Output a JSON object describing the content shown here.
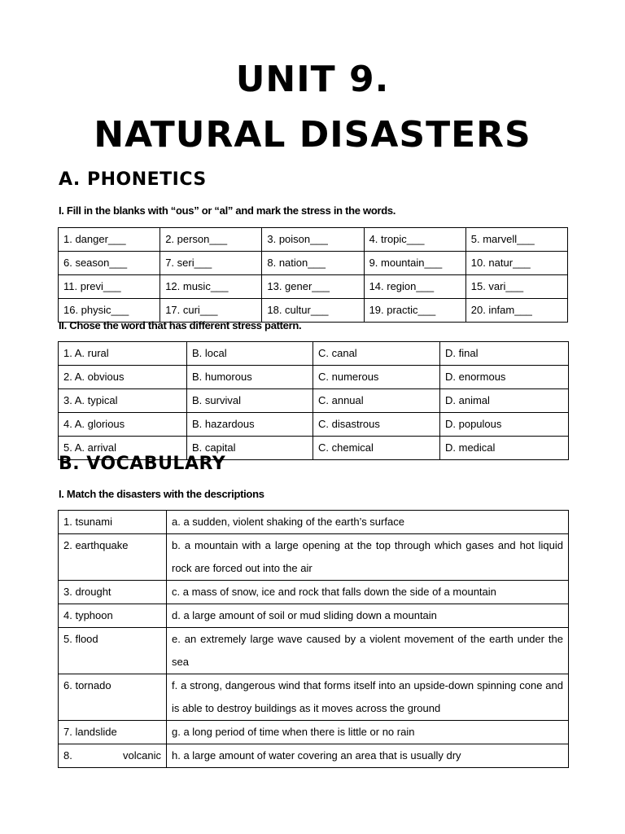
{
  "title_line1": "UNIT 9.",
  "title_line2": "NATURAL DISASTERS",
  "section_a": {
    "heading": "A. PHONETICS",
    "part1": {
      "instruction": "I. Fill in the blanks with “ous” or “al” and mark the stress in the words.",
      "rows": [
        [
          "1. danger___",
          "2. person___",
          "3. poison___",
          "4. tropic___",
          "5. marvell___"
        ],
        [
          "6. season___",
          "7. seri___",
          "8. nation___",
          "9. mountain___",
          "10. natur___"
        ],
        [
          "11. previ___",
          "12. music___",
          "13. gener___",
          "14. region___",
          " 15. vari___"
        ],
        [
          "16. physic___",
          "17. curi___",
          "18. cultur___",
          "19. practic___",
          "20. infam___"
        ]
      ]
    },
    "part2": {
      "instruction": "II. Chose the word that has different stress pattern.",
      "rows": [
        [
          "1. A. rural",
          "B. local",
          "C. canal",
          "D. final"
        ],
        [
          "2. A. obvious",
          "B. humorous",
          "C. numerous",
          "D. enormous"
        ],
        [
          "3. A. typical",
          "B. survival",
          "C. annual",
          "D. animal"
        ],
        [
          "4. A. glorious",
          "B. hazardous",
          "C. disastrous",
          "D. populous"
        ],
        [
          "5. A. arrival",
          "B. capital",
          "C. chemical",
          "D. medical"
        ]
      ]
    }
  },
  "section_b": {
    "heading": "B. VOCABULARY",
    "part1": {
      "instruction": "I. Match the disasters with the descriptions",
      "rows": [
        [
          "1. tsunami",
          "a. a sudden, violent shaking of the earth’s surface"
        ],
        [
          "2. earthquake",
          "b. a mountain with a large opening at the top through which gases and hot liquid rock are forced out into the air"
        ],
        [
          "3. drought",
          "c. a mass of snow, ice and rock that falls down the side of a mountain"
        ],
        [
          "4. typhoon",
          "d. a large amount of soil or mud sliding down a mountain"
        ],
        [
          "5. flood",
          "e. an extremely large wave caused by a violent movement of the earth under the sea"
        ],
        [
          "6. tornado",
          "f. a strong, dangerous wind that forms itself into an upside-down spinning cone and is able to destroy buildings as it moves across the ground"
        ],
        [
          "7. landslide",
          "g. a long period of time when there is little or no rain"
        ],
        [
          "8. volcanic",
          "h. a large amount of water covering an area that is usually dry"
        ]
      ]
    }
  }
}
